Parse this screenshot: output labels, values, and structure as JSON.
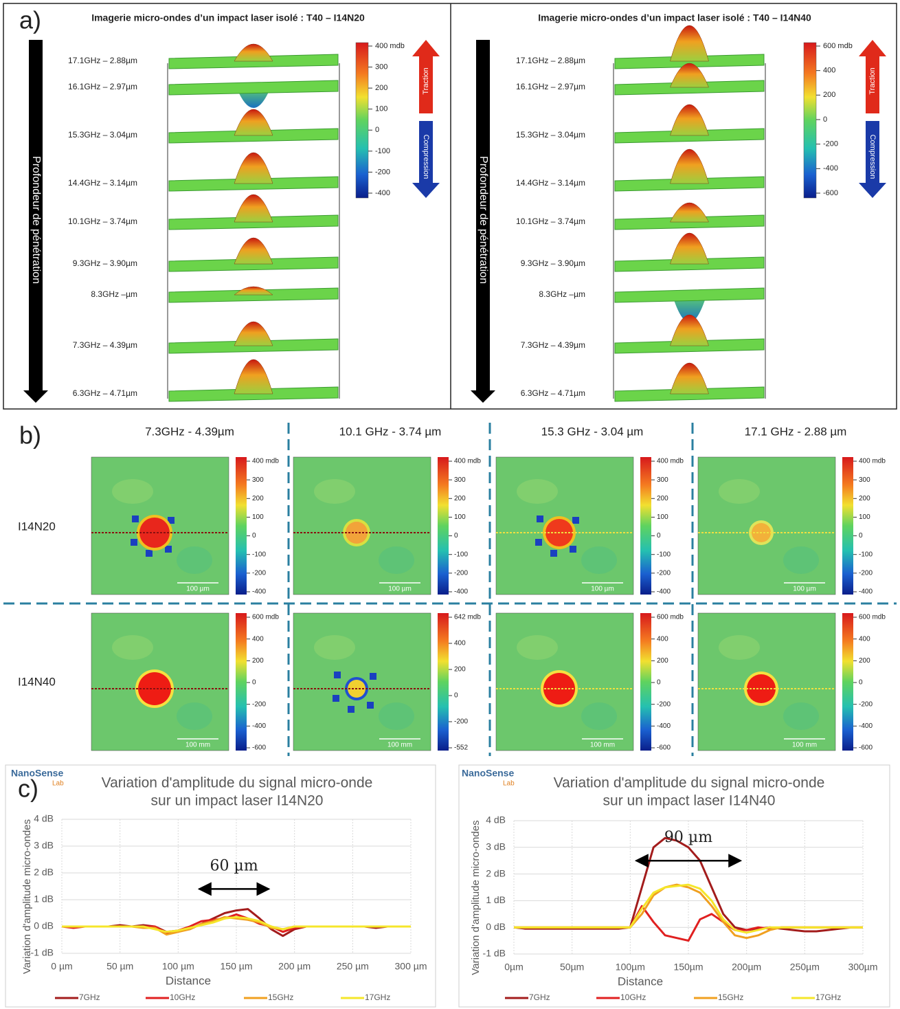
{
  "panel_a": {
    "label": "a)",
    "depth_label": "Profondeur de pénétration",
    "traction": "Traction",
    "compression": "Compression",
    "views": [
      {
        "title": "Imagerie micro-ondes d’un impact laser isolé : T40 – I14N20",
        "layers": [
          "17.1GHz – 2.88µm",
          "16.1GHz – 2.97µm",
          "15.3GHz – 3.04µm",
          "14.4GHz – 3.14µm",
          "10.1GHz – 3.74µm",
          "9.3GHz – 3.90µm",
          "8.3GHz –µm",
          "7.3GHz – 4.39µm",
          "6.3GHz – 4.71µm"
        ],
        "colorbar": [
          "400 mdb",
          "300",
          "200",
          "100",
          "0",
          "-100",
          "-200",
          "-400"
        ]
      },
      {
        "title": "Imagerie micro-ondes d’un impact laser isolé : T40 – I14N40",
        "layers": [
          "17.1GHz – 2.88µm",
          "16.1GHz – 2.97µm",
          "15.3GHz – 3.04µm",
          "14.4GHz – 3.14µm",
          "10.1GHz – 3.74µm",
          "9.3GHz – 3.90µm",
          "8.3GHz –µm",
          "7.3GHz – 4.39µm",
          "6.3GHz – 4.71µm"
        ],
        "colorbar": [
          "600 mdb",
          "400",
          "200",
          "0",
          "-200",
          "-400",
          "-600"
        ]
      }
    ]
  },
  "panel_b": {
    "label": "b)",
    "columns": [
      "7.3GHz - 4.39µm",
      "10.1 GHz - 3.74 µm",
      "15.3 GHz - 3.04 µm",
      "17.1 GHz - 2.88 µm"
    ],
    "rows": [
      {
        "name": "I14N20",
        "scale": "100 µm",
        "colorbars": [
          [
            "400 mdb",
            "300",
            "200",
            "100",
            "0",
            "-100",
            "-200",
            "-400"
          ],
          [
            "400 mdb",
            "300",
            "200",
            "100",
            "0",
            "-100",
            "-200",
            "-400"
          ],
          [
            "400 mdb",
            "300",
            "200",
            "100",
            "0",
            "-100",
            "-200",
            "-400"
          ],
          [
            "400 mdb",
            "300",
            "200",
            "100",
            "0",
            "-100",
            "-200",
            "-400"
          ]
        ]
      },
      {
        "name": "I14N40",
        "scale": "100 mm",
        "colorbars": [
          [
            "600 mdb",
            "400",
            "200",
            "0",
            "-200",
            "-400",
            "-600"
          ],
          [
            "642 mdb",
            "400",
            "200",
            "0",
            "-200",
            "-552"
          ],
          [
            "600 mdb",
            "400",
            "200",
            "0",
            "-200",
            "-400",
            "-600"
          ],
          [
            "600 mdb",
            "400",
            "200",
            "0",
            "-200",
            "-400",
            "-600"
          ]
        ]
      }
    ]
  },
  "panel_c_label": "c)",
  "chart_data": [
    {
      "type": "line",
      "logo": [
        "NanoSense",
        "Lab"
      ],
      "title": [
        "Variation d'amplitude du signal micro-onde",
        "sur un impact laser I14N20"
      ],
      "x_label": "Distance",
      "y_label": "Variation d'amplitude micro-ondes",
      "x": [
        0,
        10,
        20,
        30,
        40,
        50,
        60,
        70,
        80,
        90,
        100,
        110,
        120,
        130,
        140,
        150,
        160,
        170,
        180,
        190,
        200,
        210,
        220,
        230,
        240,
        250,
        260,
        270,
        280,
        290,
        300
      ],
      "xlim": [
        0,
        300
      ],
      "xticks": [
        {
          "value": 0,
          "label": "0 µm"
        },
        {
          "value": 50,
          "label": "50 µm"
        },
        {
          "value": 100,
          "label": "100 µm"
        },
        {
          "value": 150,
          "label": "150 µm"
        },
        {
          "value": 200,
          "label": "200 µm"
        },
        {
          "value": 250,
          "label": "250 µm"
        },
        {
          "value": 300,
          "label": "300 µm"
        }
      ],
      "ylim": [
        -1,
        4
      ],
      "yticks": [
        {
          "value": -1,
          "label": "-1 dB"
        },
        {
          "value": 0,
          "label": "0 dB"
        },
        {
          "value": 1,
          "label": "1 dB"
        },
        {
          "value": 2,
          "label": "2 dB"
        },
        {
          "value": 3,
          "label": "3 dB"
        },
        {
          "value": 4,
          "label": "4 dB"
        }
      ],
      "grid": true,
      "legend": "bottom",
      "series": [
        {
          "name": "7GHz",
          "color": "#a31c1c",
          "values": [
            0,
            0,
            0,
            0,
            0,
            0.05,
            0,
            0.05,
            0,
            -0.2,
            -0.15,
            -0.1,
            0.1,
            0.3,
            0.5,
            0.6,
            0.65,
            0.3,
            -0.1,
            -0.35,
            -0.1,
            0,
            0,
            0,
            0,
            0,
            0,
            -0.05,
            0,
            0,
            0
          ]
        },
        {
          "name": "10GHz",
          "color": "#e02020",
          "values": [
            0,
            -0.05,
            0,
            0,
            0,
            0,
            0,
            0,
            0,
            -0.25,
            -0.15,
            0,
            0.2,
            0.25,
            0.3,
            0.45,
            0.3,
            0.1,
            0,
            -0.2,
            -0.05,
            0,
            0,
            0,
            0,
            0,
            0,
            0,
            0,
            0,
            0
          ]
        },
        {
          "name": "15GHz",
          "color": "#f0a020",
          "values": [
            0,
            0,
            0,
            0,
            0,
            0,
            0,
            -0.05,
            -0.05,
            -0.3,
            -0.2,
            -0.1,
            0.1,
            0.2,
            0.35,
            0.3,
            0.25,
            0.15,
            -0.05,
            -0.1,
            0,
            0,
            0,
            0,
            0,
            0,
            0,
            0,
            0,
            0,
            0
          ]
        },
        {
          "name": "17GHz",
          "color": "#f5e62a",
          "values": [
            0,
            0,
            0,
            0,
            0,
            0,
            0,
            0,
            -0.1,
            -0.2,
            -0.15,
            -0.05,
            0.05,
            0.15,
            0.3,
            0.35,
            0.3,
            0.2,
            0,
            -0.1,
            0,
            0,
            0,
            0,
            0,
            0,
            0,
            0,
            0,
            0,
            0
          ]
        }
      ],
      "annotation": {
        "text": "60 µm",
        "x": [
          118,
          178
        ],
        "y": 1.4
      }
    },
    {
      "type": "line",
      "logo": [
        "NanoSense",
        "Lab"
      ],
      "title": [
        "Variation d'amplitude du signal micro-onde",
        "sur un impact laser I14N40"
      ],
      "x_label": "Distance",
      "y_label": "Variation d'amplitude micro-ondes",
      "x": [
        0,
        10,
        20,
        30,
        40,
        50,
        60,
        70,
        80,
        90,
        100,
        110,
        120,
        130,
        140,
        150,
        160,
        170,
        180,
        190,
        200,
        210,
        220,
        230,
        240,
        250,
        260,
        270,
        280,
        290,
        300
      ],
      "xlim": [
        0,
        300
      ],
      "xticks": [
        {
          "value": 0,
          "label": "0µm"
        },
        {
          "value": 50,
          "label": "50µm"
        },
        {
          "value": 100,
          "label": "100µm"
        },
        {
          "value": 150,
          "label": "150µm"
        },
        {
          "value": 200,
          "label": "200µm"
        },
        {
          "value": 250,
          "label": "250µm"
        },
        {
          "value": 300,
          "label": "300µm"
        }
      ],
      "ylim": [
        -1,
        4
      ],
      "yticks": [
        {
          "value": -1,
          "label": "-1 dB"
        },
        {
          "value": 0,
          "label": "0 dB"
        },
        {
          "value": 1,
          "label": "1 dB"
        },
        {
          "value": 2,
          "label": "2 dB"
        },
        {
          "value": 3,
          "label": "3 dB"
        },
        {
          "value": 4,
          "label": "4 dB"
        }
      ],
      "grid": true,
      "legend": "bottom",
      "series": [
        {
          "name": "7GHz",
          "color": "#a31c1c",
          "values": [
            0,
            -0.05,
            -0.05,
            -0.05,
            -0.05,
            -0.05,
            -0.05,
            -0.05,
            -0.05,
            -0.05,
            0,
            1.5,
            3.0,
            3.35,
            3.25,
            3.0,
            2.5,
            1.5,
            0.5,
            0,
            -0.1,
            -0.05,
            0,
            -0.05,
            -0.1,
            -0.15,
            -0.15,
            -0.1,
            -0.05,
            0,
            0
          ]
        },
        {
          "name": "10GHz",
          "color": "#e02020",
          "values": [
            0,
            0,
            0,
            0,
            0,
            0,
            0,
            0,
            0,
            0,
            0,
            0.8,
            0.2,
            -0.3,
            -0.4,
            -0.5,
            0.3,
            0.5,
            0.2,
            -0.1,
            -0.1,
            0,
            -0.05,
            0,
            0,
            0,
            0,
            0,
            0,
            0,
            0
          ]
        },
        {
          "name": "15GHz",
          "color": "#f0a020",
          "values": [
            0,
            0,
            0,
            0,
            0,
            0,
            0,
            0,
            0,
            0,
            0,
            0.5,
            1.2,
            1.5,
            1.6,
            1.5,
            1.3,
            0.8,
            0.2,
            -0.3,
            -0.4,
            -0.3,
            -0.1,
            0,
            0,
            0,
            0,
            0,
            0,
            0,
            0
          ]
        },
        {
          "name": "17GHz",
          "color": "#f5e62a",
          "values": [
            0,
            0,
            0,
            0,
            0,
            0,
            0,
            0,
            0,
            0,
            0,
            0.7,
            1.3,
            1.5,
            1.55,
            1.6,
            1.45,
            1.0,
            0.3,
            -0.1,
            -0.2,
            -0.1,
            0,
            0,
            0,
            0,
            0,
            0,
            0,
            0,
            0
          ]
        }
      ],
      "annotation": {
        "text": "90 µm",
        "x": [
          105,
          195
        ],
        "y": 2.5
      }
    }
  ]
}
